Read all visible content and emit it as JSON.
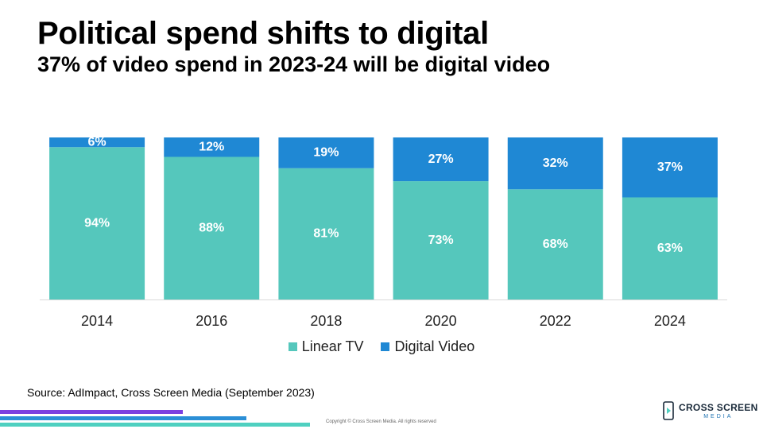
{
  "title": "Political spend shifts to digital",
  "subtitle": "37% of video spend in 2023-24 will be digital video",
  "source": "Source: AdImpact, Cross Screen Media (September 2023)",
  "copyright": "Copyright © Cross Screen Media. All rights reserved",
  "logo": {
    "main": "CROSS SCREEN",
    "sub": "MEDIA",
    "icon": "phone-play-icon"
  },
  "colors": {
    "linear_tv": "#55c7bc",
    "digital_video": "#1f88d4"
  },
  "chart_data": {
    "type": "bar",
    "stacked": true,
    "categories": [
      "2014",
      "2016",
      "2018",
      "2020",
      "2022",
      "2024"
    ],
    "series": [
      {
        "name": "Linear TV",
        "values": [
          94,
          88,
          81,
          73,
          68,
          63
        ],
        "labels": [
          "94%",
          "88%",
          "81%",
          "73%",
          "68%",
          "63%"
        ]
      },
      {
        "name": "Digital Video",
        "values": [
          6,
          12,
          19,
          27,
          32,
          37
        ],
        "labels": [
          "6%",
          "12%",
          "19%",
          "27%",
          "32%",
          "37%"
        ]
      }
    ],
    "ylim": [
      0,
      100
    ],
    "legend": "bottom",
    "grid": false
  }
}
